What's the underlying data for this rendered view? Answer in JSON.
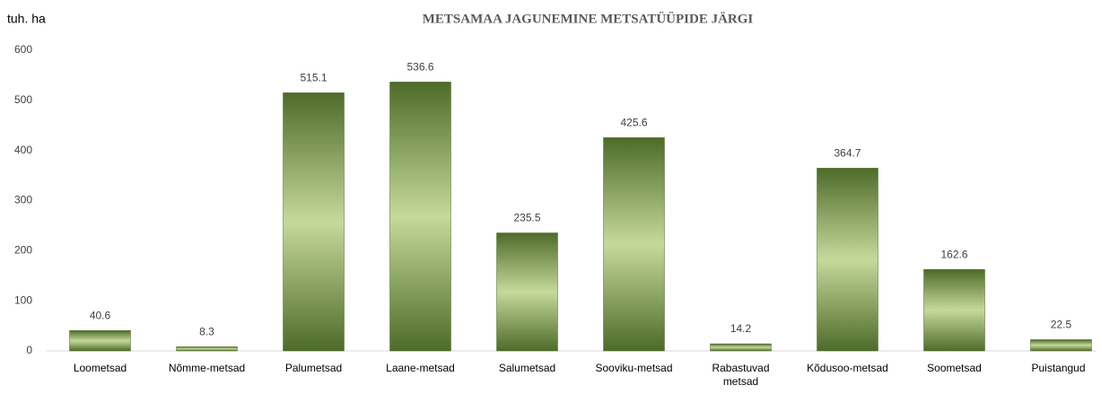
{
  "chart_data": {
    "type": "bar",
    "title": "METSAMAA JAGUNEMINE METSATÜÜPIDE JÄRGI",
    "y_label": "tuh. ha",
    "categories": [
      "Loometsad",
      "Nõmme-metsad",
      "Palumetsad",
      "Laane-metsad",
      "Salumetsad",
      "Sooviku-metsad",
      "Rabastuvad metsad",
      "Kõdusoo-metsad",
      "Soometsad",
      "Puistangud"
    ],
    "values": [
      40.6,
      8.3,
      515.1,
      536.6,
      235.5,
      425.6,
      14.2,
      364.7,
      162.6,
      22.5
    ],
    "color": "#4e6b2a",
    "ylim": [
      0,
      600
    ],
    "yticks": [
      0,
      100,
      200,
      300,
      400,
      500,
      600
    ],
    "grid": false
  }
}
